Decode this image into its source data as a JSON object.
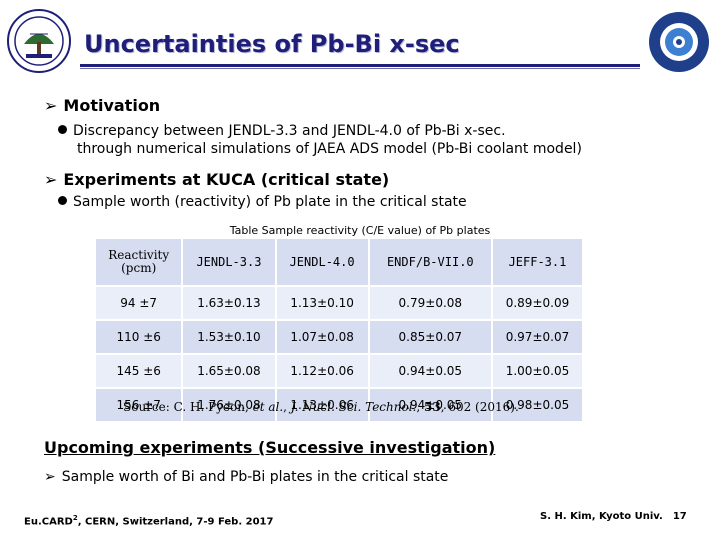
{
  "slide": {
    "title": "Uncertainties of Pb-Bi x-sec",
    "motivation": {
      "heading": "Motivation",
      "bullet_line1": "Discrepancy between JENDL-3.3 and JENDL-4.0 of Pb-Bi x-sec.",
      "bullet_line2": "through numerical simulations of JAEA ADS model (Pb-Bi coolant model)"
    },
    "experiments": {
      "heading": "Experiments at KUCA (critical state)",
      "bullet": "Sample worth (reactivity) of Pb plate in the critical state"
    },
    "table": {
      "caption": "Table Sample reactivity (C/E value) of Pb plates",
      "header": {
        "col0_line1": "Reactivity",
        "col0_line2": "(pcm)",
        "col1": "JENDL-3.3",
        "col2": "JENDL-4.0",
        "col3": "ENDF/B-VII.0",
        "col4": "JEFF-3.1"
      },
      "rows": [
        [
          "94 ±7",
          "1.63±0.13",
          "1.13±0.10",
          "0.79±0.08",
          "0.89±0.09"
        ],
        [
          "110 ±6",
          "1.53±0.10",
          "1.07±0.08",
          "0.85±0.07",
          "0.97±0.07"
        ],
        [
          "145 ±6",
          "1.65±0.08",
          "1.12±0.06",
          "0.94±0.05",
          "1.00±0.05"
        ],
        [
          "156 ±7",
          "1.76±0.08",
          "1.13±0.06",
          "0.94±0.05",
          "0.98±0.05"
        ]
      ]
    },
    "source": {
      "prefix": "Source: C. H. Pyeon, ",
      "etal": "et al.",
      "sep1": ", ",
      "journal": "J. Nucl. Sci. Technol.",
      "sep2": ", ",
      "volume": "53",
      "suffix": ", 602 (2016)."
    },
    "upcoming": {
      "heading": "Upcoming experiments (Successive investigation)",
      "item": "Sample worth of Bi and Pb-Bi plates in the critical state"
    },
    "footer": {
      "left_prefix": "Eu.CARD",
      "left_sup": "2",
      "left_suffix": ", CERN, Switzerland, 7-9 Feb. 2017",
      "right": "S. H. Kim, Kyoto Univ.",
      "page": "17"
    },
    "logo_right_text": "KYOTO UNIVERSITY"
  },
  "colors": {
    "title": "#1f1f7a",
    "table_odd": "#d6ddf0",
    "table_even": "#eaeef8"
  },
  "icons": {
    "left_logo": "university-crest-icon",
    "right_logo": "research-reactor-institute-seal-icon",
    "arrow": "arrow-bullet-icon"
  }
}
